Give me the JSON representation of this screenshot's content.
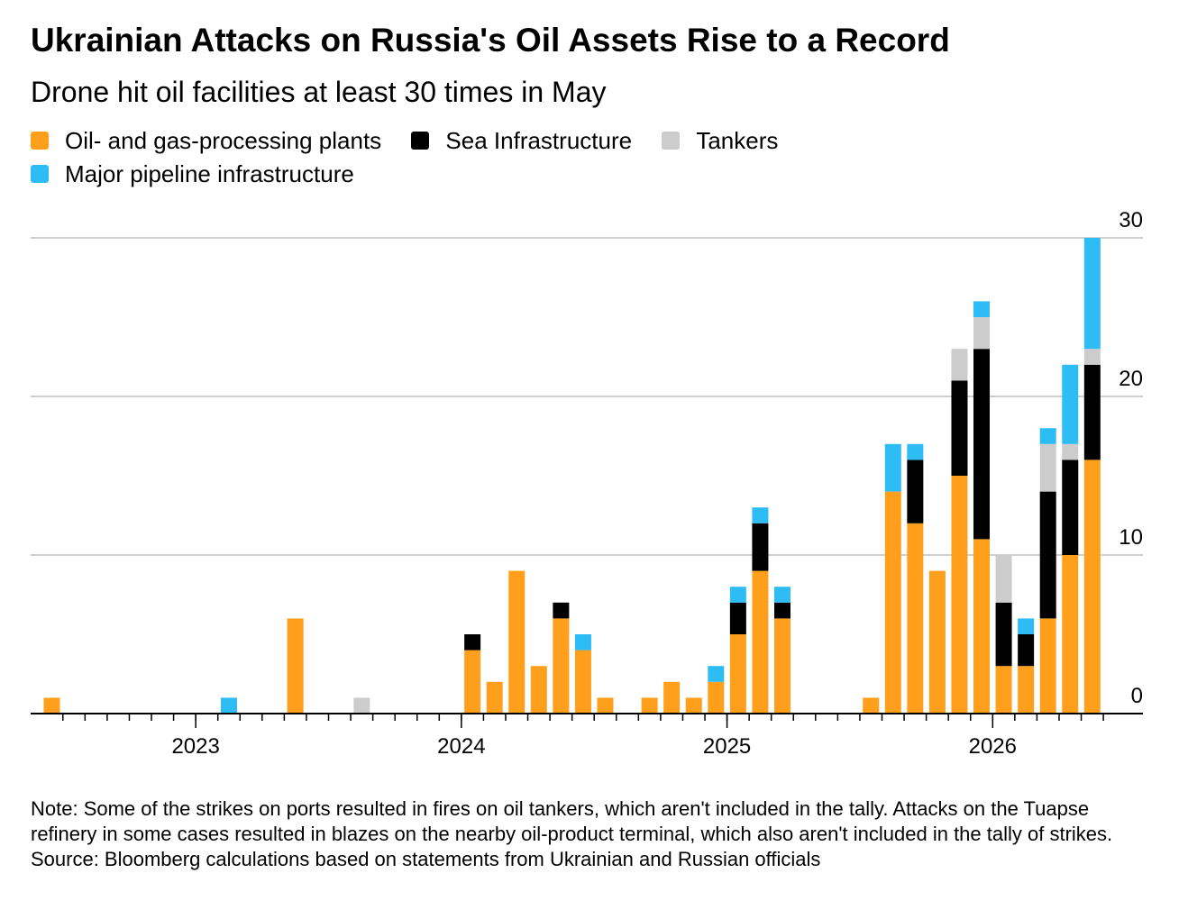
{
  "title": "Ukrainian Attacks on Russia's Oil Assets Rise to a Record",
  "subtitle": "Drone hit oil facilities at least 30 times in May",
  "colors": {
    "oil": "#ff9f1c",
    "sea": "#000000",
    "tankers": "#cccccc",
    "pipeline": "#2ebcf5",
    "grid": "#cfcfcf",
    "axis": "#000000"
  },
  "note": "Note: Some of the strikes on ports resulted in fires on oil tankers, which aren't included in the tally. Attacks on the Tuapse refinery in some cases resulted in blazes on the nearby oil-product terminal, which also aren't included in the tally of strikes.",
  "source": "Source: Bloomberg calculations based on statements from Ukrainian and Russian officials",
  "chart_data": {
    "type": "bar",
    "stacked": true,
    "ylim": [
      0,
      30
    ],
    "yticks": [
      0,
      10,
      20,
      30
    ],
    "grid": true,
    "legend": "top",
    "x_tick_labels": [
      "2023",
      "2024",
      "2025",
      "2026"
    ],
    "categories": [
      "2022-06",
      "2022-07",
      "2022-08",
      "2022-09",
      "2022-10",
      "2022-11",
      "2022-12",
      "2023-01",
      "2023-02",
      "2023-03",
      "2023-04",
      "2023-05",
      "2023-06",
      "2023-07",
      "2023-08",
      "2023-09",
      "2023-10",
      "2023-11",
      "2023-12",
      "2024-01",
      "2024-02",
      "2024-03",
      "2024-04",
      "2024-05",
      "2024-06",
      "2024-07",
      "2024-08",
      "2024-09",
      "2024-10",
      "2024-11",
      "2024-12",
      "2025-01",
      "2025-02",
      "2025-03",
      "2025-04",
      "2025-05",
      "2025-06",
      "2025-07",
      "2025-08",
      "2025-09",
      "2025-10",
      "2025-11",
      "2025-12",
      "2026-01",
      "2026-02",
      "2026-03",
      "2026-04",
      "2026-05"
    ],
    "series": [
      {
        "name": "Oil- and gas-processing plants",
        "color_key": "oil",
        "values": [
          1,
          0,
          0,
          0,
          0,
          0,
          0,
          0,
          0,
          0,
          0,
          6,
          0,
          0,
          0,
          0,
          0,
          0,
          0,
          4,
          2,
          9,
          3,
          6,
          4,
          1,
          0,
          1,
          2,
          1,
          2,
          5,
          9,
          6,
          0,
          0,
          0,
          1,
          14,
          12,
          9,
          15,
          11,
          3,
          3,
          6,
          10,
          16
        ]
      },
      {
        "name": "Sea Infrastructure",
        "color_key": "sea",
        "values": [
          0,
          0,
          0,
          0,
          0,
          0,
          0,
          0,
          0,
          0,
          0,
          0,
          0,
          0,
          0,
          0,
          0,
          0,
          0,
          1,
          0,
          0,
          0,
          1,
          0,
          0,
          0,
          0,
          0,
          0,
          0,
          2,
          3,
          1,
          0,
          0,
          0,
          0,
          0,
          4,
          0,
          6,
          12,
          4,
          2,
          8,
          6,
          6
        ]
      },
      {
        "name": "Tankers",
        "color_key": "tankers",
        "values": [
          0,
          0,
          0,
          0,
          0,
          0,
          0,
          0,
          0,
          0,
          0,
          0,
          0,
          0,
          1,
          0,
          0,
          0,
          0,
          0,
          0,
          0,
          0,
          0,
          0,
          0,
          0,
          0,
          0,
          0,
          0,
          0,
          0,
          0,
          0,
          0,
          0,
          0,
          0,
          0,
          0,
          2,
          2,
          3,
          0,
          3,
          1,
          1
        ]
      },
      {
        "name": "Major pipeline infrastructure",
        "color_key": "pipeline",
        "values": [
          0,
          0,
          0,
          0,
          0,
          0,
          0,
          0,
          1,
          0,
          0,
          0,
          0,
          0,
          0,
          0,
          0,
          0,
          0,
          0,
          0,
          0,
          0,
          0,
          1,
          0,
          0,
          0,
          0,
          0,
          1,
          1,
          1,
          1,
          0,
          0,
          0,
          0,
          3,
          1,
          0,
          0,
          1,
          0,
          1,
          1,
          5,
          7
        ]
      }
    ]
  }
}
